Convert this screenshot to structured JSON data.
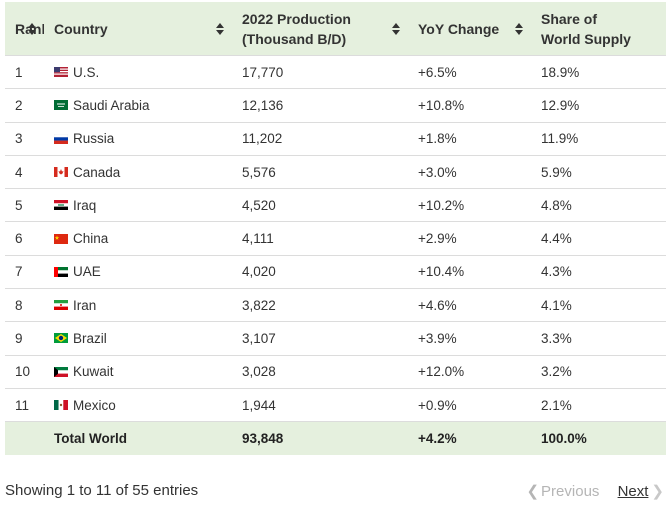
{
  "table": {
    "headers": [
      {
        "label": "Rank"
      },
      {
        "label": "Country"
      },
      {
        "label_line1": "2022 Production",
        "label_line2": "(Thousand B/D)"
      },
      {
        "label": "YoY Change"
      },
      {
        "label_line1": "Share of",
        "label_line2": "World Supply"
      }
    ],
    "rows": [
      {
        "rank": "1",
        "country": "U.S.",
        "flag": "us-flag-icon",
        "production": "17,770",
        "yoy": "+6.5%",
        "share": "18.9%"
      },
      {
        "rank": "2",
        "country": "Saudi Arabia",
        "flag": "saudi-arabia-flag-icon",
        "production": "12,136",
        "yoy": "+10.8%",
        "share": "12.9%"
      },
      {
        "rank": "3",
        "country": "Russia",
        "flag": "russia-flag-icon",
        "production": "11,202",
        "yoy": "+1.8%",
        "share": "11.9%"
      },
      {
        "rank": "4",
        "country": "Canada",
        "flag": "canada-flag-icon",
        "production": "5,576",
        "yoy": "+3.0%",
        "share": "5.9%"
      },
      {
        "rank": "5",
        "country": "Iraq",
        "flag": "iraq-flag-icon",
        "production": "4,520",
        "yoy": "+10.2%",
        "share": "4.8%"
      },
      {
        "rank": "6",
        "country": "China",
        "flag": "china-flag-icon",
        "production": "4,111",
        "yoy": "+2.9%",
        "share": "4.4%"
      },
      {
        "rank": "7",
        "country": "UAE",
        "flag": "uae-flag-icon",
        "production": "4,020",
        "yoy": "+10.4%",
        "share": "4.3%"
      },
      {
        "rank": "8",
        "country": "Iran",
        "flag": "iran-flag-icon",
        "production": "3,822",
        "yoy": "+4.6%",
        "share": "4.1%"
      },
      {
        "rank": "9",
        "country": "Brazil",
        "flag": "brazil-flag-icon",
        "production": "3,107",
        "yoy": "+3.9%",
        "share": "3.3%"
      },
      {
        "rank": "10",
        "country": "Kuwait",
        "flag": "kuwait-flag-icon",
        "production": "3,028",
        "yoy": "+12.0%",
        "share": "3.2%"
      },
      {
        "rank": "11",
        "country": "Mexico",
        "flag": "mexico-flag-icon",
        "production": "1,944",
        "yoy": "+0.9%",
        "share": "2.1%"
      }
    ],
    "total": {
      "label": "Total World",
      "production": "93,848",
      "yoy": "+4.2%",
      "share": "100.0%"
    }
  },
  "footer": {
    "info": "Showing 1 to 11 of 55 entries",
    "prev_label": "Previous",
    "next_label": "Next"
  },
  "colors": {
    "header_bg": "#e5f0de",
    "row_border": "#dcdcdc"
  }
}
